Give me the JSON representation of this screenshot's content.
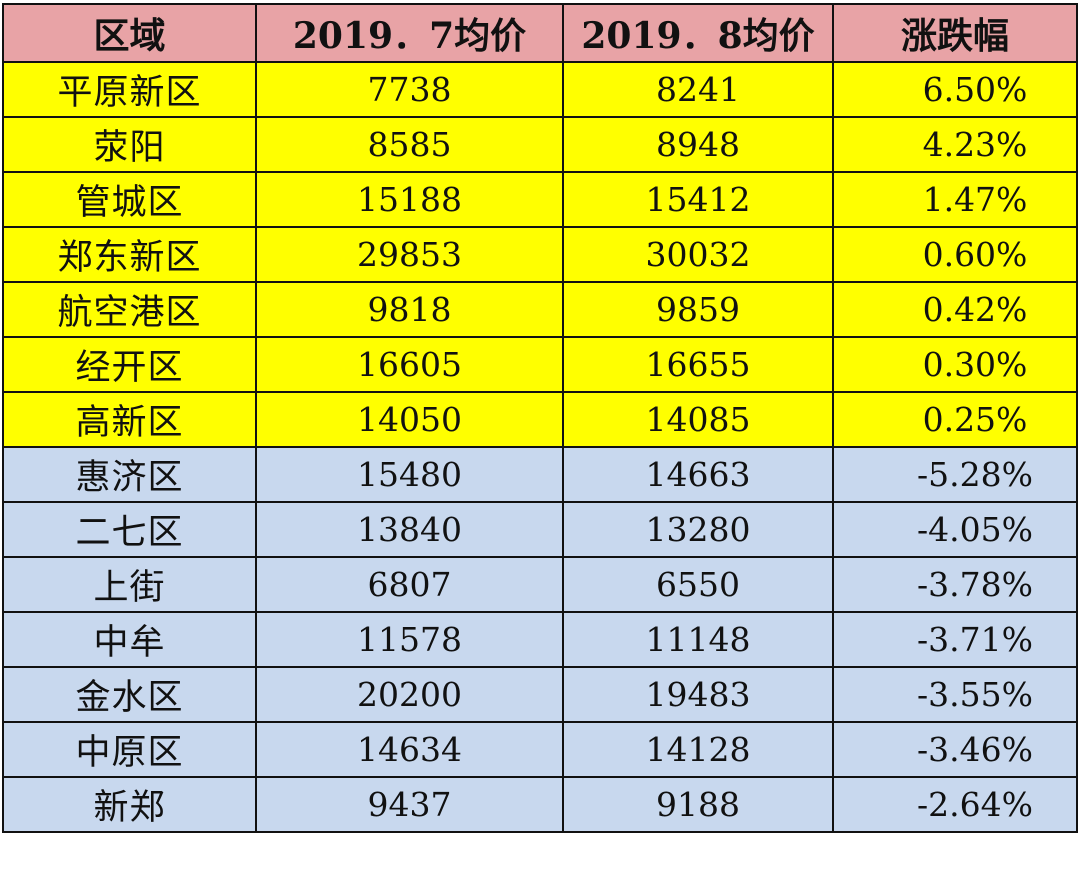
{
  "table": {
    "headers": [
      "区域",
      "2019．7均价",
      "2019．8均价",
      "涨跌幅"
    ],
    "colors": {
      "header_bg": "#e8a3a6",
      "rise_bg": "#ffff00",
      "fall_bg": "#c8d8ee"
    },
    "rows": [
      {
        "region": "平原新区",
        "jul": "7738",
        "aug": "8241",
        "change": "6.50%",
        "trend": "up"
      },
      {
        "region": "荥阳",
        "jul": "8585",
        "aug": "8948",
        "change": "4.23%",
        "trend": "up"
      },
      {
        "region": "管城区",
        "jul": "15188",
        "aug": "15412",
        "change": "1.47%",
        "trend": "up"
      },
      {
        "region": "郑东新区",
        "jul": "29853",
        "aug": "30032",
        "change": "0.60%",
        "trend": "up"
      },
      {
        "region": "航空港区",
        "jul": "9818",
        "aug": "9859",
        "change": "0.42%",
        "trend": "up"
      },
      {
        "region": "经开区",
        "jul": "16605",
        "aug": "16655",
        "change": "0.30%",
        "trend": "up"
      },
      {
        "region": "高新区",
        "jul": "14050",
        "aug": "14085",
        "change": "0.25%",
        "trend": "up"
      },
      {
        "region": "惠济区",
        "jul": "15480",
        "aug": "14663",
        "change": "-5.28%",
        "trend": "down"
      },
      {
        "region": "二七区",
        "jul": "13840",
        "aug": "13280",
        "change": "-4.05%",
        "trend": "down"
      },
      {
        "region": "上街",
        "jul": "6807",
        "aug": "6550",
        "change": "-3.78%",
        "trend": "down"
      },
      {
        "region": "中牟",
        "jul": "11578",
        "aug": "11148",
        "change": "-3.71%",
        "trend": "down"
      },
      {
        "region": "金水区",
        "jul": "20200",
        "aug": "19483",
        "change": "-3.55%",
        "trend": "down"
      },
      {
        "region": "中原区",
        "jul": "14634",
        "aug": "14128",
        "change": "-3.46%",
        "trend": "down"
      },
      {
        "region": "新郑",
        "jul": "9437",
        "aug": "9188",
        "change": "-2.64%",
        "trend": "down"
      }
    ]
  }
}
